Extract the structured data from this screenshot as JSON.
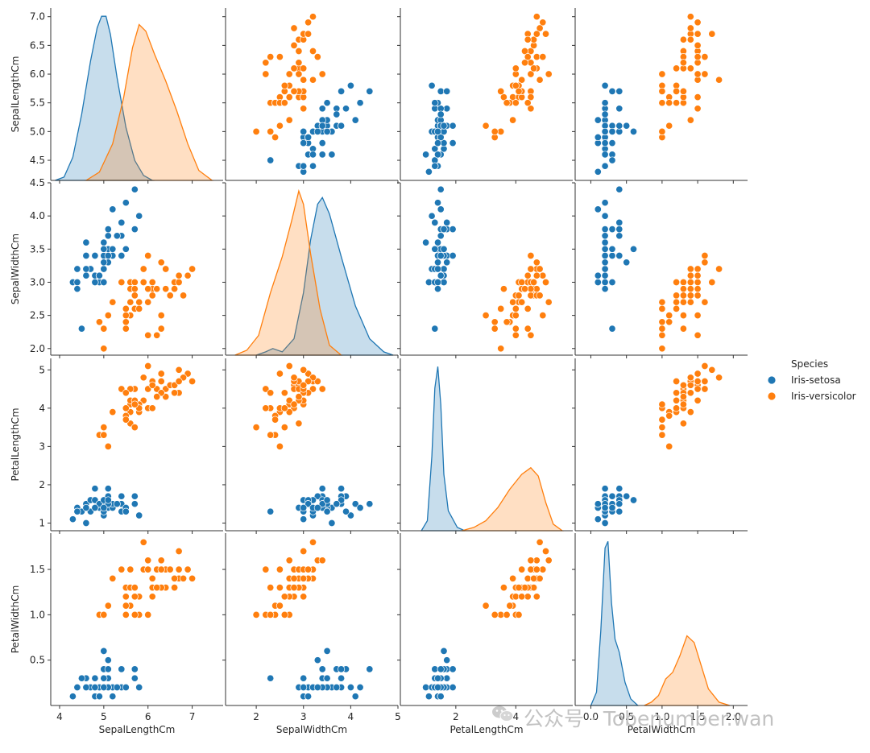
{
  "colors": {
    "setosa": "#1f77b4",
    "versicolor": "#ff7f0e"
  },
  "watermark": {
    "text": "公众号 · Tobenumber.wan",
    "icon": "wechat-icon"
  },
  "chart_data": {
    "type": "scatter",
    "kind": "pairplot",
    "variables": [
      "SepalLengthCm",
      "SepalWidthCm",
      "PetalLengthCm",
      "PetalWidthCm"
    ],
    "hue": "Species",
    "legend": {
      "title": "Species",
      "placement": "right",
      "entries": [
        {
          "label": "Iris-setosa",
          "series": "setosa"
        },
        {
          "label": "Iris-versicolor",
          "series": "versicolor"
        }
      ]
    },
    "axes": {
      "SepalLengthCm": {
        "lim": [
          3.8,
          7.7
        ],
        "ticks": [
          4,
          5,
          6,
          7
        ],
        "row_ticks": [
          4.5,
          5.0,
          5.5,
          6.0,
          6.5,
          7.0
        ],
        "row_lim": [
          4.15,
          7.15
        ]
      },
      "SepalWidthCm": {
        "lim": [
          1.35,
          5.0
        ],
        "ticks": [
          2,
          3,
          4,
          5
        ],
        "row_ticks": [
          2.0,
          2.5,
          3.0,
          3.5,
          4.0,
          4.5
        ],
        "row_lim": [
          1.9,
          4.5
        ]
      },
      "PetalLengthCm": {
        "lim": [
          0.15,
          5.9
        ],
        "ticks": [
          2,
          4
        ],
        "row_ticks": [
          1,
          2,
          3,
          4,
          5
        ],
        "row_lim": [
          0.8,
          5.3
        ]
      },
      "PetalWidthCm": {
        "lim": [
          -0.22,
          2.2
        ],
        "ticks": [
          0.0,
          0.5,
          1.0,
          1.5,
          2.0
        ],
        "row_ticks": [
          0.5,
          1.0,
          1.5
        ],
        "row_lim": [
          0.0,
          1.9
        ]
      }
    },
    "kde": {
      "SepalLengthCm": {
        "setosa": {
          "max": 1.0,
          "points": [
            [
              3.9,
              0
            ],
            [
              4.1,
              0.02
            ],
            [
              4.3,
              0.14
            ],
            [
              4.5,
              0.4
            ],
            [
              4.7,
              0.72
            ],
            [
              4.85,
              0.92
            ],
            [
              4.95,
              0.99
            ],
            [
              5.05,
              0.99
            ],
            [
              5.15,
              0.88
            ],
            [
              5.3,
              0.62
            ],
            [
              5.5,
              0.32
            ],
            [
              5.7,
              0.12
            ],
            [
              5.9,
              0.03
            ],
            [
              6.1,
              0
            ]
          ]
        },
        "versicolor": {
          "max": 1.0,
          "points": [
            [
              4.6,
              0
            ],
            [
              4.9,
              0.05
            ],
            [
              5.2,
              0.22
            ],
            [
              5.45,
              0.5
            ],
            [
              5.65,
              0.8
            ],
            [
              5.8,
              0.94
            ],
            [
              5.95,
              0.9
            ],
            [
              6.15,
              0.76
            ],
            [
              6.4,
              0.6
            ],
            [
              6.65,
              0.42
            ],
            [
              6.9,
              0.22
            ],
            [
              7.15,
              0.06
            ],
            [
              7.45,
              0
            ]
          ]
        }
      },
      "SepalWidthCm": {
        "setosa": {
          "max": 1.0,
          "points": [
            [
              2.0,
              0
            ],
            [
              2.2,
              0.02
            ],
            [
              2.35,
              0.04
            ],
            [
              2.55,
              0.02
            ],
            [
              2.8,
              0.1
            ],
            [
              3.0,
              0.38
            ],
            [
              3.15,
              0.7
            ],
            [
              3.3,
              0.92
            ],
            [
              3.4,
              0.96
            ],
            [
              3.55,
              0.86
            ],
            [
              3.8,
              0.6
            ],
            [
              4.1,
              0.3
            ],
            [
              4.4,
              0.1
            ],
            [
              4.7,
              0.02
            ],
            [
              4.9,
              0
            ]
          ]
        },
        "versicolor": {
          "max": 1.0,
          "points": [
            [
              1.55,
              0
            ],
            [
              1.8,
              0.03
            ],
            [
              2.05,
              0.12
            ],
            [
              2.3,
              0.38
            ],
            [
              2.55,
              0.6
            ],
            [
              2.75,
              0.82
            ],
            [
              2.9,
              1.0
            ],
            [
              3.0,
              0.92
            ],
            [
              3.15,
              0.62
            ],
            [
              3.35,
              0.28
            ],
            [
              3.55,
              0.06
            ],
            [
              3.8,
              0
            ]
          ]
        }
      },
      "PetalLengthCm": {
        "setosa": {
          "max": 1.0,
          "points": [
            [
              0.85,
              0
            ],
            [
              1.05,
              0.06
            ],
            [
              1.2,
              0.45
            ],
            [
              1.3,
              0.86
            ],
            [
              1.4,
              0.99
            ],
            [
              1.5,
              0.76
            ],
            [
              1.6,
              0.34
            ],
            [
              1.75,
              0.12
            ],
            [
              1.9,
              0.07
            ],
            [
              2.05,
              0.02
            ],
            [
              2.3,
              0
            ]
          ]
        },
        "versicolor": {
          "max": 1.0,
          "points": [
            [
              2.2,
              0
            ],
            [
              2.6,
              0.02
            ],
            [
              3.0,
              0.06
            ],
            [
              3.4,
              0.14
            ],
            [
              3.8,
              0.25
            ],
            [
              4.2,
              0.34
            ],
            [
              4.5,
              0.38
            ],
            [
              4.75,
              0.33
            ],
            [
              5.0,
              0.17
            ],
            [
              5.25,
              0.04
            ],
            [
              5.55,
              0
            ]
          ]
        }
      },
      "PetalWidthCm": {
        "setosa": {
          "max": 1.0,
          "points": [
            [
              0.0,
              0
            ],
            [
              0.08,
              0.08
            ],
            [
              0.14,
              0.45
            ],
            [
              0.2,
              0.95
            ],
            [
              0.24,
              0.99
            ],
            [
              0.29,
              0.62
            ],
            [
              0.34,
              0.4
            ],
            [
              0.4,
              0.32
            ],
            [
              0.48,
              0.14
            ],
            [
              0.56,
              0.04
            ],
            [
              0.66,
              0
            ]
          ]
        },
        "versicolor": {
          "max": 1.0,
          "points": [
            [
              0.75,
              0
            ],
            [
              0.85,
              0.02
            ],
            [
              0.95,
              0.06
            ],
            [
              1.05,
              0.16
            ],
            [
              1.15,
              0.2
            ],
            [
              1.25,
              0.3
            ],
            [
              1.35,
              0.42
            ],
            [
              1.45,
              0.38
            ],
            [
              1.55,
              0.24
            ],
            [
              1.65,
              0.1
            ],
            [
              1.8,
              0.02
            ],
            [
              1.95,
              0
            ]
          ]
        }
      }
    },
    "points": {
      "setosa": [
        [
          5.1,
          3.5,
          1.4,
          0.2
        ],
        [
          4.9,
          3.0,
          1.4,
          0.2
        ],
        [
          4.7,
          3.2,
          1.3,
          0.2
        ],
        [
          4.6,
          3.1,
          1.5,
          0.2
        ],
        [
          5.0,
          3.6,
          1.4,
          0.2
        ],
        [
          5.4,
          3.9,
          1.7,
          0.4
        ],
        [
          4.6,
          3.4,
          1.4,
          0.3
        ],
        [
          5.0,
          3.4,
          1.5,
          0.2
        ],
        [
          4.4,
          2.9,
          1.4,
          0.2
        ],
        [
          4.9,
          3.1,
          1.5,
          0.1
        ],
        [
          5.4,
          3.7,
          1.5,
          0.2
        ],
        [
          4.8,
          3.4,
          1.6,
          0.2
        ],
        [
          4.8,
          3.0,
          1.4,
          0.1
        ],
        [
          4.3,
          3.0,
          1.1,
          0.1
        ],
        [
          5.8,
          4.0,
          1.2,
          0.2
        ],
        [
          5.7,
          4.4,
          1.5,
          0.4
        ],
        [
          5.4,
          3.9,
          1.3,
          0.4
        ],
        [
          5.1,
          3.5,
          1.4,
          0.3
        ],
        [
          5.7,
          3.8,
          1.7,
          0.3
        ],
        [
          5.1,
          3.8,
          1.5,
          0.3
        ],
        [
          5.4,
          3.4,
          1.7,
          0.2
        ],
        [
          5.1,
          3.7,
          1.5,
          0.4
        ],
        [
          4.6,
          3.6,
          1.0,
          0.2
        ],
        [
          5.1,
          3.3,
          1.7,
          0.5
        ],
        [
          4.8,
          3.4,
          1.9,
          0.2
        ],
        [
          5.0,
          3.0,
          1.6,
          0.2
        ],
        [
          5.0,
          3.4,
          1.6,
          0.4
        ],
        [
          5.2,
          3.5,
          1.5,
          0.2
        ],
        [
          5.2,
          3.4,
          1.4,
          0.2
        ],
        [
          4.7,
          3.2,
          1.6,
          0.2
        ],
        [
          4.8,
          3.1,
          1.6,
          0.2
        ],
        [
          5.4,
          3.4,
          1.5,
          0.4
        ],
        [
          5.2,
          4.1,
          1.5,
          0.1
        ],
        [
          5.5,
          4.2,
          1.4,
          0.2
        ],
        [
          4.9,
          3.1,
          1.5,
          0.1
        ],
        [
          5.0,
          3.2,
          1.2,
          0.2
        ],
        [
          5.5,
          3.5,
          1.3,
          0.2
        ],
        [
          4.9,
          3.1,
          1.5,
          0.1
        ],
        [
          4.4,
          3.0,
          1.3,
          0.2
        ],
        [
          5.1,
          3.4,
          1.5,
          0.2
        ],
        [
          5.0,
          3.5,
          1.3,
          0.3
        ],
        [
          4.5,
          2.3,
          1.3,
          0.3
        ],
        [
          4.4,
          3.2,
          1.3,
          0.2
        ],
        [
          5.0,
          3.5,
          1.6,
          0.6
        ],
        [
          5.1,
          3.8,
          1.9,
          0.4
        ],
        [
          4.8,
          3.0,
          1.4,
          0.3
        ],
        [
          5.1,
          3.8,
          1.6,
          0.2
        ],
        [
          4.6,
          3.2,
          1.4,
          0.2
        ],
        [
          5.3,
          3.7,
          1.5,
          0.2
        ],
        [
          5.0,
          3.3,
          1.4,
          0.2
        ]
      ],
      "versicolor": [
        [
          7.0,
          3.2,
          4.7,
          1.4
        ],
        [
          6.4,
          3.2,
          4.5,
          1.5
        ],
        [
          6.9,
          3.1,
          4.9,
          1.5
        ],
        [
          5.5,
          2.3,
          4.0,
          1.3
        ],
        [
          6.5,
          2.8,
          4.6,
          1.5
        ],
        [
          5.7,
          2.8,
          4.5,
          1.3
        ],
        [
          6.3,
          3.3,
          4.7,
          1.6
        ],
        [
          4.9,
          2.4,
          3.3,
          1.0
        ],
        [
          6.6,
          2.9,
          4.6,
          1.3
        ],
        [
          5.2,
          2.7,
          3.9,
          1.4
        ],
        [
          5.0,
          2.0,
          3.5,
          1.0
        ],
        [
          5.9,
          3.0,
          4.2,
          1.5
        ],
        [
          6.0,
          2.2,
          4.0,
          1.0
        ],
        [
          6.1,
          2.9,
          4.7,
          1.4
        ],
        [
          5.6,
          2.9,
          3.6,
          1.3
        ],
        [
          6.7,
          3.1,
          4.4,
          1.4
        ],
        [
          5.6,
          3.0,
          4.5,
          1.5
        ],
        [
          5.8,
          2.7,
          4.1,
          1.0
        ],
        [
          6.2,
          2.2,
          4.5,
          1.5
        ],
        [
          5.6,
          2.5,
          3.9,
          1.1
        ],
        [
          5.9,
          3.2,
          4.8,
          1.8
        ],
        [
          6.1,
          2.8,
          4.0,
          1.3
        ],
        [
          6.3,
          2.5,
          4.9,
          1.5
        ],
        [
          6.1,
          2.8,
          4.7,
          1.2
        ],
        [
          6.4,
          2.9,
          4.3,
          1.3
        ],
        [
          6.6,
          3.0,
          4.4,
          1.4
        ],
        [
          6.8,
          2.8,
          4.8,
          1.4
        ],
        [
          6.7,
          3.0,
          5.0,
          1.7
        ],
        [
          6.0,
          2.9,
          4.5,
          1.5
        ],
        [
          5.7,
          2.6,
          3.5,
          1.0
        ],
        [
          5.5,
          2.4,
          3.8,
          1.1
        ],
        [
          5.5,
          2.4,
          3.7,
          1.0
        ],
        [
          5.8,
          2.7,
          3.9,
          1.2
        ],
        [
          6.0,
          2.7,
          5.1,
          1.6
        ],
        [
          5.4,
          3.0,
          4.5,
          1.5
        ],
        [
          6.0,
          3.4,
          4.5,
          1.6
        ],
        [
          6.7,
          3.1,
          4.7,
          1.5
        ],
        [
          6.3,
          2.3,
          4.4,
          1.3
        ],
        [
          5.6,
          3.0,
          4.1,
          1.3
        ],
        [
          5.5,
          2.5,
          4.0,
          1.3
        ],
        [
          5.5,
          2.6,
          4.4,
          1.2
        ],
        [
          6.1,
          3.0,
          4.6,
          1.4
        ],
        [
          5.8,
          2.6,
          4.0,
          1.2
        ],
        [
          5.0,
          2.3,
          3.3,
          1.0
        ],
        [
          5.6,
          2.7,
          4.2,
          1.3
        ],
        [
          5.7,
          3.0,
          4.2,
          1.2
        ],
        [
          5.7,
          2.9,
          4.2,
          1.3
        ],
        [
          6.2,
          2.9,
          4.3,
          1.3
        ],
        [
          5.1,
          2.5,
          3.0,
          1.1
        ],
        [
          5.7,
          2.8,
          4.1,
          1.3
        ]
      ]
    }
  }
}
